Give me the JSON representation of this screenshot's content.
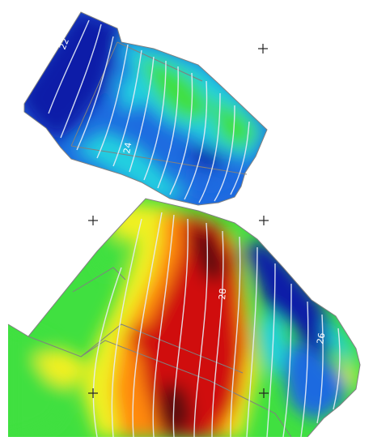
{
  "map": {
    "contour_labels": [
      {
        "text": "22"
      },
      {
        "text": "24"
      },
      {
        "text": "28"
      },
      {
        "text": "26"
      }
    ],
    "colors": {
      "background": "#ffffff",
      "contour": "#e8eef8",
      "boundary": "#808080",
      "low": "#0a1aa8",
      "low_mid": "#1e6be0",
      "mid": "#20d0e0",
      "mid_high": "#40e040",
      "high": "#f0f020",
      "higher": "#ff8a10",
      "peak": "#d01010",
      "max": "#5a0a0a"
    }
  }
}
